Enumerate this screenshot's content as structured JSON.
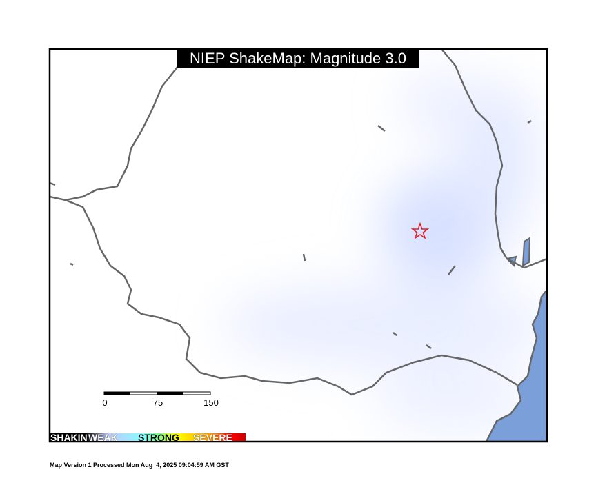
{
  "title": "NIEP ShakeMap: Magnitude 3.0",
  "scale_bar": {
    "labels": [
      "0",
      "75",
      "150"
    ]
  },
  "legend": {
    "labels": [
      "SHAKING",
      "WEAK",
      "STRONG",
      "SEVERE"
    ]
  },
  "footer": "Map Version 1 Processed Mon Aug  4, 2025 09:04:59 AM GST",
  "epicenter": {
    "icon": "star-icon",
    "color": "#e8141c"
  },
  "colors": {
    "border": "#666666",
    "water": "#7b9fd8",
    "shaking_tint": "#d4deff"
  }
}
